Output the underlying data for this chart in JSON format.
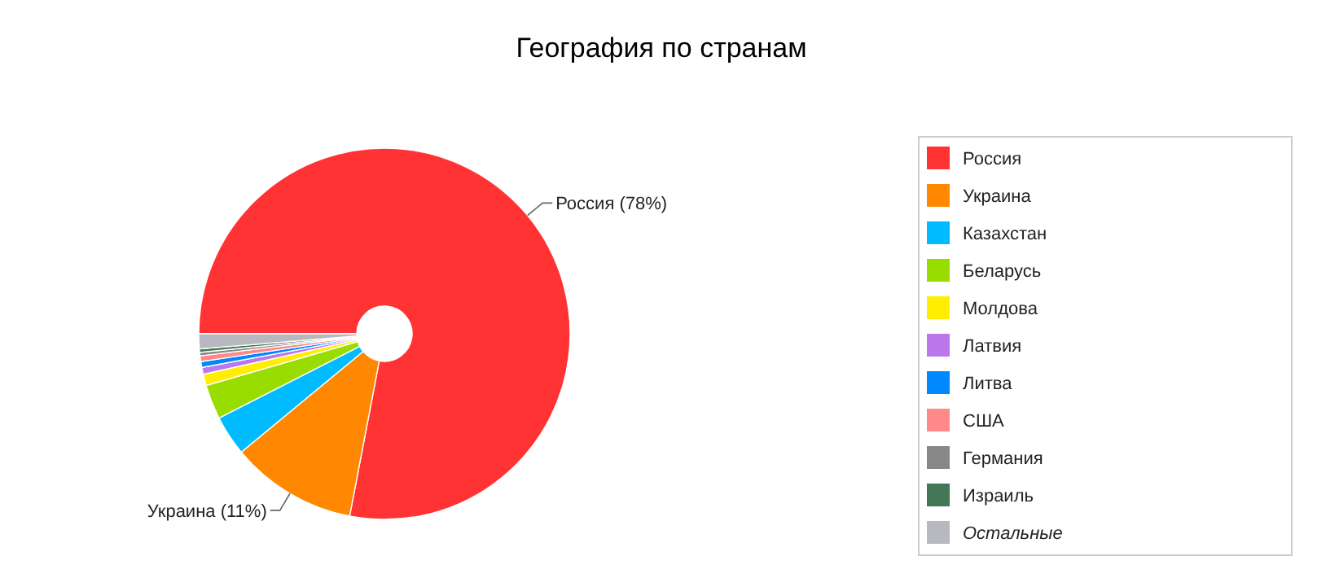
{
  "chart_data": {
    "type": "donut",
    "title": "География по странам",
    "categories": [
      "Россия",
      "Украина",
      "Казахстан",
      "Беларусь",
      "Молдова",
      "Латвия",
      "Литва",
      "США",
      "Германия",
      "Израиль",
      "Остальные"
    ],
    "values": [
      78,
      11,
      3.5,
      3,
      1,
      0.6,
      0.5,
      0.5,
      0.3,
      0.3,
      1.3
    ],
    "colors": [
      "#ff3333",
      "#ff8800",
      "#00bbff",
      "#99dd00",
      "#ffee00",
      "#bb77ee",
      "#0088ff",
      "#ff8888",
      "#888888",
      "#447755",
      "#b8b8c0"
    ],
    "value_labels": [
      "Россия (78%)",
      "Украина (11%)",
      null,
      null,
      null,
      null,
      null,
      null,
      null,
      null,
      null
    ],
    "legend": "right"
  }
}
